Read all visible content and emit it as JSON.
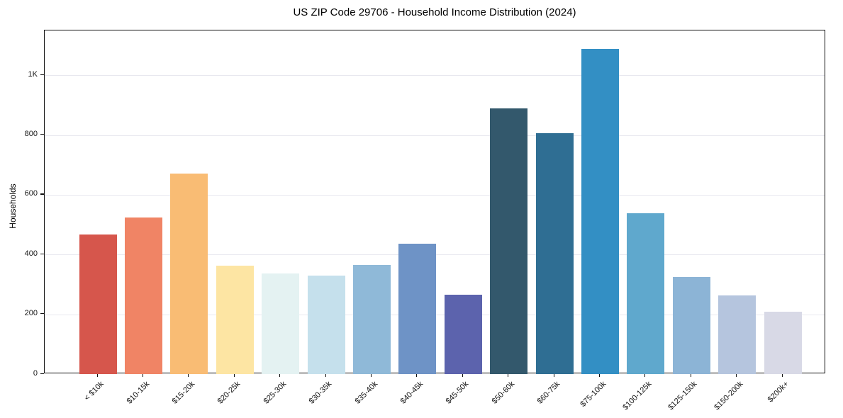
{
  "chart_data": {
    "type": "bar",
    "title": "US ZIP Code 29706 - Household Income Distribution (2024)",
    "xlabel": "",
    "ylabel": "Households",
    "categories": [
      "< $10k",
      "$10-15k",
      "$15-20k",
      "$20-25k",
      "$25-30k",
      "$30-35k",
      "$35-40k",
      "$40-45k",
      "$45-50k",
      "$50-60k",
      "$60-75k",
      "$75-100k",
      "$100-125k",
      "$125-150k",
      "$150-200k",
      "$200k+"
    ],
    "values": [
      466,
      525,
      670,
      363,
      337,
      330,
      364,
      437,
      265,
      889,
      806,
      1088,
      539,
      326,
      263,
      209
    ],
    "bar_colors": [
      "#d6564c",
      "#f08465",
      "#f9bc74",
      "#fde5a3",
      "#e4f2f2",
      "#c5e0ec",
      "#8fb9d8",
      "#6e93c6",
      "#5c63ad",
      "#33586c",
      "#2f6e93",
      "#338fc4",
      "#5fa8cd",
      "#8cb4d6",
      "#b5c5de",
      "#d8d9e6"
    ],
    "ylim": [
      0,
      1150
    ],
    "yticks": {
      "values": [
        0,
        200,
        400,
        600,
        800,
        1000
      ],
      "labels": [
        "0",
        "200",
        "400",
        "600",
        "800",
        "1K"
      ]
    },
    "grid": "horizontal-gridlines-on",
    "legend": "none"
  }
}
